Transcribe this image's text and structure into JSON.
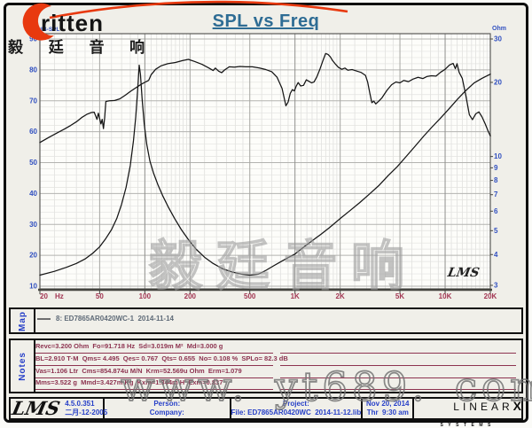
{
  "header": {
    "title": "SPL vs Freq",
    "brand_word": "ritten",
    "brand_cn": "毅 廷 音 响"
  },
  "chart": {
    "left_axis_title": "dB-SPL",
    "right_axis_title": "Ohm",
    "corner_mark": "LMS",
    "watermark": "毅廷音响"
  },
  "chart_data": {
    "type": "line",
    "title": "SPL vs Freq",
    "x_scale": "log",
    "x_range": [
      20,
      20000
    ],
    "x_unit": "Hz",
    "x_ticks": [
      {
        "v": 20,
        "label": "20"
      },
      {
        "v": 50,
        "label": "50"
      },
      {
        "v": 100,
        "label": "100"
      },
      {
        "v": 200,
        "label": "200"
      },
      {
        "v": 500,
        "label": "500"
      },
      {
        "v": 1000,
        "label": "1K"
      },
      {
        "v": 2000,
        "label": "2K"
      },
      {
        "v": 5000,
        "label": "5K"
      },
      {
        "v": 10000,
        "label": "10K"
      },
      {
        "v": 20000,
        "label": "20K"
      }
    ],
    "left_axis": {
      "label": "dB-SPL",
      "range": [
        10,
        90
      ],
      "ticks": [
        90,
        80,
        70,
        60,
        50,
        40,
        30,
        20,
        10
      ],
      "grid_step": 2
    },
    "right_axis": {
      "label": "Ohm",
      "scale": "log",
      "range": [
        3,
        30
      ],
      "ticks": [
        30,
        20,
        10,
        9,
        8,
        7,
        6,
        5,
        4,
        3
      ]
    },
    "legend_position": "map-panel-below",
    "grid": true,
    "series": [
      {
        "name": "SPL ED7865AR0420WC-1 (dB, left axis)",
        "axis": "left",
        "color": "#141414",
        "points": [
          [
            20,
            56.5
          ],
          [
            23,
            58.2
          ],
          [
            26,
            59.6
          ],
          [
            29,
            60.8
          ],
          [
            32,
            62
          ],
          [
            35,
            63.2
          ],
          [
            38,
            64.6
          ],
          [
            41,
            65.6
          ],
          [
            44,
            66.2
          ],
          [
            46,
            66.3
          ],
          [
            48,
            64
          ],
          [
            49,
            66
          ],
          [
            51,
            62.5
          ],
          [
            52,
            64
          ],
          [
            53,
            61
          ],
          [
            54,
            64.5
          ],
          [
            55,
            69.8
          ],
          [
            58,
            70
          ],
          [
            63,
            70.1
          ],
          [
            68,
            70.6
          ],
          [
            74,
            71.8
          ],
          [
            80,
            73
          ],
          [
            87,
            74.2
          ],
          [
            95,
            75.4
          ],
          [
            102,
            76.2
          ],
          [
            106,
            76.6
          ],
          [
            110,
            78.4
          ],
          [
            118,
            80.2
          ],
          [
            128,
            81.3
          ],
          [
            142,
            82
          ],
          [
            160,
            82.4
          ],
          [
            178,
            83
          ],
          [
            195,
            83.4
          ],
          [
            215,
            82.7
          ],
          [
            240,
            81.8
          ],
          [
            265,
            80.7
          ],
          [
            285,
            79.8
          ],
          [
            295,
            80.6
          ],
          [
            310,
            79.6
          ],
          [
            325,
            79.1
          ],
          [
            340,
            80
          ],
          [
            365,
            81
          ],
          [
            395,
            80.9
          ],
          [
            430,
            81.1
          ],
          [
            470,
            81
          ],
          [
            520,
            81
          ],
          [
            580,
            80.6
          ],
          [
            640,
            80.1
          ],
          [
            700,
            79.4
          ],
          [
            760,
            77.6
          ],
          [
            820,
            74
          ],
          [
            870,
            68.4
          ],
          [
            900,
            69.6
          ],
          [
            930,
            72.4
          ],
          [
            960,
            73.6
          ],
          [
            990,
            73.2
          ],
          [
            1020,
            74.8
          ],
          [
            1050,
            75.9
          ],
          [
            1090,
            74.8
          ],
          [
            1140,
            75
          ],
          [
            1190,
            76.8
          ],
          [
            1240,
            76.3
          ],
          [
            1290,
            75.8
          ],
          [
            1340,
            76.1
          ],
          [
            1400,
            77.8
          ],
          [
            1470,
            80.4
          ],
          [
            1540,
            83.2
          ],
          [
            1600,
            85.3
          ],
          [
            1660,
            85
          ],
          [
            1720,
            84.2
          ],
          [
            1780,
            83
          ],
          [
            1850,
            82
          ],
          [
            1950,
            80.8
          ],
          [
            2050,
            80.2
          ],
          [
            2150,
            80.6
          ],
          [
            2250,
            79.9
          ],
          [
            2400,
            80.1
          ],
          [
            2550,
            79.7
          ],
          [
            2750,
            79.2
          ],
          [
            2950,
            78.2
          ],
          [
            3050,
            76
          ],
          [
            3150,
            72.5
          ],
          [
            3250,
            69.4
          ],
          [
            3350,
            69.9
          ],
          [
            3450,
            69
          ],
          [
            3600,
            69.8
          ],
          [
            3800,
            71
          ],
          [
            4100,
            73.4
          ],
          [
            4400,
            75.2
          ],
          [
            4700,
            76.1
          ],
          [
            5000,
            75.8
          ],
          [
            5300,
            76.6
          ],
          [
            5700,
            76.2
          ],
          [
            6100,
            77
          ],
          [
            6600,
            77.6
          ],
          [
            7100,
            77.2
          ],
          [
            7600,
            77.9
          ],
          [
            8100,
            78.1
          ],
          [
            8700,
            78
          ],
          [
            9300,
            79.2
          ],
          [
            10000,
            80.2
          ],
          [
            10700,
            81.6
          ],
          [
            11300,
            82.1
          ],
          [
            11700,
            80.4
          ],
          [
            12000,
            82
          ],
          [
            12400,
            79.2
          ],
          [
            13000,
            77.3
          ],
          [
            13700,
            72
          ],
          [
            14500,
            65.5
          ],
          [
            15200,
            63.9
          ],
          [
            16000,
            65.8
          ],
          [
            16800,
            66.4
          ],
          [
            17600,
            64.8
          ],
          [
            18500,
            62.5
          ],
          [
            19300,
            60.3
          ],
          [
            20000,
            58.6
          ]
        ]
      },
      {
        "name": "Impedance (Ohm, right axis)",
        "axis": "right",
        "color": "#141414",
        "points": [
          [
            20,
            3.3
          ],
          [
            25,
            3.42
          ],
          [
            30,
            3.55
          ],
          [
            35,
            3.68
          ],
          [
            40,
            3.84
          ],
          [
            45,
            4.05
          ],
          [
            50,
            4.3
          ],
          [
            55,
            4.65
          ],
          [
            60,
            5.05
          ],
          [
            65,
            5.6
          ],
          [
            70,
            6.4
          ],
          [
            75,
            7.5
          ],
          [
            80,
            9.2
          ],
          [
            84,
            11.6
          ],
          [
            87,
            14.5
          ],
          [
            90,
            19.5
          ],
          [
            91.7,
            23.5
          ],
          [
            93.5,
            21.5
          ],
          [
            96,
            17
          ],
          [
            99,
            13.6
          ],
          [
            103,
            11.2
          ],
          [
            108,
            9.6
          ],
          [
            114,
            8.6
          ],
          [
            122,
            7.7
          ],
          [
            132,
            6.9
          ],
          [
            144,
            6.2
          ],
          [
            158,
            5.6
          ],
          [
            175,
            5.05
          ],
          [
            195,
            4.6
          ],
          [
            220,
            4.2
          ],
          [
            250,
            3.9
          ],
          [
            285,
            3.68
          ],
          [
            330,
            3.5
          ],
          [
            380,
            3.4
          ],
          [
            440,
            3.33
          ],
          [
            500,
            3.3
          ],
          [
            570,
            3.33
          ],
          [
            640,
            3.45
          ],
          [
            720,
            3.6
          ],
          [
            810,
            3.75
          ],
          [
            910,
            3.9
          ],
          [
            1000,
            4.02
          ],
          [
            1150,
            4.3
          ],
          [
            1300,
            4.55
          ],
          [
            1500,
            4.85
          ],
          [
            1700,
            5.15
          ],
          [
            2000,
            5.6
          ],
          [
            2300,
            6
          ],
          [
            2700,
            6.5
          ],
          [
            3100,
            7
          ],
          [
            3600,
            7.6
          ],
          [
            4200,
            8.4
          ],
          [
            4800,
            9.1
          ],
          [
            5500,
            10
          ],
          [
            6300,
            11
          ],
          [
            7200,
            12.1
          ],
          [
            8200,
            13.2
          ],
          [
            9300,
            14.3
          ],
          [
            10500,
            15.5
          ],
          [
            12000,
            17
          ],
          [
            13700,
            18.5
          ],
          [
            15600,
            19.9
          ],
          [
            17700,
            20.8
          ],
          [
            20000,
            21.6
          ]
        ]
      }
    ]
  },
  "map_panel": {
    "label": "Map",
    "legend_text": "8: ED7865AR0420WC-1  2014-11-14"
  },
  "notes_panel": {
    "label": "Notes",
    "lines": [
      "Revc=3.200 Ohm  Fo=91.718 Hz  Sd=3.019m M²  Md=3.000 g",
      "BL=2.910 T·M  Qms= 4.495  Qes= 0.767  Qts= 0.655  No= 0.108 %  SPLo= 82.3 dB",
      "Vas=1.106 Ltr  Cms=854.874u M/N  Krm=52.569u Ohm  Erm=1.079",
      "Mms=3.522 g  Mmd=3.427m Kg  Kxm=1.344m H  Exm=0.837"
    ]
  },
  "footer": {
    "lms_logo": "LMS",
    "version": "4.5.0.351",
    "version_date": "二月-12-2005",
    "person_label": "Person:",
    "company_label": "Company:",
    "project_label": "Project:",
    "file_label": "File: ED7865AR0420WC  2014-11-12.lib",
    "date": "Nov 20, 2014",
    "time": "Thr  9:30 am",
    "linearx_main": "LINEAR",
    "linearx_x": "X",
    "linearx_sub": "SYSTEMS"
  },
  "watermark_site": "www. yt689. com"
}
